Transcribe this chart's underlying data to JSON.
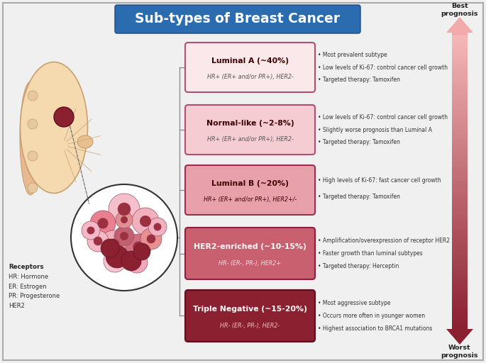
{
  "title": "Sub-types of Breast Cancer",
  "title_bg": "#2b6cb0",
  "title_color": "#ffffff",
  "background_color": "#f0f0f0",
  "subtypes": [
    {
      "name": "Luminal A (~40%)",
      "sub": "HR+ (ER+ and/or PR+), HER2-",
      "box_color": "#fbe8ea",
      "border_color": "#b05070",
      "text_color": "#3d0000",
      "sub_color": "#555555",
      "bullets": [
        "• Most prevalent subtype",
        "• Low levels of Ki-67: control cancer cell growth",
        "• Targeted therapy: Tamoxifen"
      ]
    },
    {
      "name": "Normal-like (~2-8%)",
      "sub": "HR+ (ER+ and/or PR+), HER2-",
      "box_color": "#f5ccd2",
      "border_color": "#b05070",
      "text_color": "#3d0000",
      "sub_color": "#555555",
      "bullets": [
        "• Low levels of Ki-67: control cancer cell growth",
        "• Slightly worse prognosis than Luminal A",
        "• Targeted therapy: Tamoxifen"
      ]
    },
    {
      "name": "Luminal B (~20%)",
      "sub": "HR+ (ER+ and/or PR+), HER2+/-",
      "box_color": "#e8a0aa",
      "border_color": "#9a3050",
      "text_color": "#3d0000",
      "sub_color": "#3d0000",
      "bullets": [
        "• High levels of Ki-67: fast cancer cell growth",
        "• Targeted therapy: Tamoxifen"
      ]
    },
    {
      "name": "HER2-enriched (~10-15%)",
      "sub": "HR- (ER-, PR-), HER2+",
      "box_color": "#c96070",
      "border_color": "#8a2040",
      "text_color": "#ffffff",
      "sub_color": "#f5e0e2",
      "bullets": [
        "• Amplification/overexpression of receptor HER2",
        "• Faster growth than luminal subtypes",
        "• Targeted therapy: Herceptin"
      ]
    },
    {
      "name": "Triple Negative (~15-20%)",
      "sub": "HR- (ER-, PR-), HER2-",
      "box_color": "#8b2030",
      "border_color": "#5a1020",
      "text_color": "#ffffff",
      "sub_color": "#f0c0c4",
      "bullets": [
        "• Most aggressive subtype",
        "• Occurs more often in younger women",
        "• Highest association to BRCA1 mutations"
      ]
    }
  ],
  "receptors_bold": "Receptors",
  "receptors_rest": "HR: Hormone\nER: Estrogen\nPR: Progesterone\nHER2",
  "best_prognosis": "Best\nprognosis",
  "worst_prognosis": "Worst\nprognosis"
}
